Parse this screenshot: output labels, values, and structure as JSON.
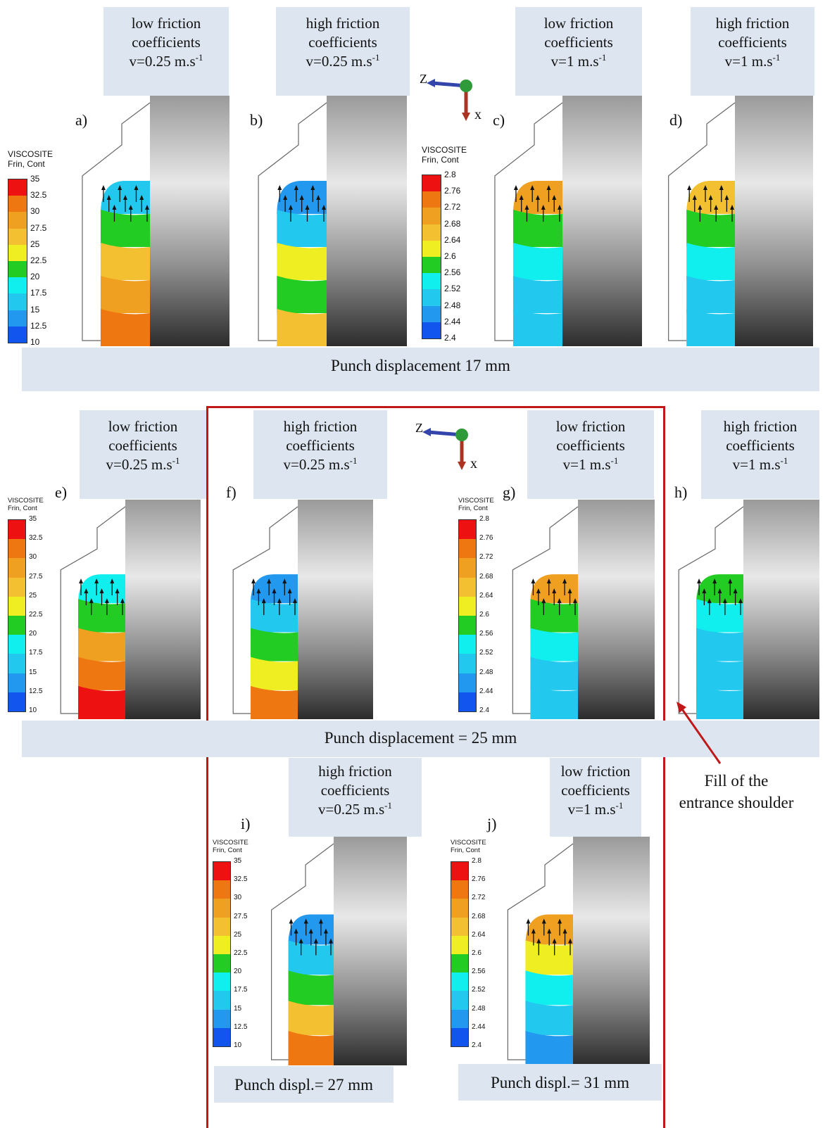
{
  "captions": {
    "a": [
      "low friction",
      "coefficients",
      "v=0.25 m.s",
      "-1"
    ],
    "b": [
      "high friction",
      "coefficients",
      "v=0.25 m.s",
      "-1"
    ],
    "c": [
      "low friction",
      "coefficients",
      "v=1 m.s",
      "-1"
    ],
    "d": [
      "high friction",
      "coefficients",
      "v=1 m.s",
      "-1"
    ],
    "e": [
      "low friction",
      "coefficients",
      "v=0.25 m.s",
      "-1"
    ],
    "f": [
      "high friction",
      "coefficients",
      "v=0.25 m.s",
      "-1"
    ],
    "g": [
      "low friction",
      "coefficients",
      "v=1 m.s",
      "-1"
    ],
    "h": [
      "high friction",
      "coefficients",
      "v=1 m.s",
      "-1"
    ],
    "i": [
      "high friction",
      "coefficients",
      "v=0.25 m.s",
      "-1"
    ],
    "j": [
      "low friction",
      "coefficients",
      "v=1 m.s",
      "-1"
    ]
  },
  "panel_labels": {
    "a": "a)",
    "b": "b)",
    "c": "c)",
    "d": "d)",
    "e": "e)",
    "f": "f)",
    "g": "g)",
    "h": "h)",
    "i": "i)",
    "j": "j)"
  },
  "bands": {
    "row1": "Punch displacement 17 mm",
    "row2": "Punch displacement = 25 mm",
    "row3_left": "Punch displ.= 27 mm",
    "row3_right": "Punch displ.= 31 mm"
  },
  "axis": {
    "z": "Z",
    "x": "x"
  },
  "legend_title": [
    "VISCOSITE",
    "Frin, Cont"
  ],
  "legend_a": [
    "35",
    "32.5",
    "30",
    "27.5",
    "25",
    "22.5",
    "20",
    "17.5",
    "15",
    "12.5",
    "10"
  ],
  "legend_b": [
    "2.8",
    "2.76",
    "2.72",
    "2.68",
    "2.64",
    "2.6",
    "2.56",
    "2.52",
    "2.48",
    "2.44",
    "2.4"
  ],
  "legend_colors": [
    "#ee1111",
    "#ee7711",
    "#f0a020",
    "#f2c030",
    "#eeee22",
    "#22cc22",
    "#11eeee",
    "#22c8ee",
    "#2299ee",
    "#1155ee",
    "#1111ee"
  ],
  "annotation": [
    "Fill of the",
    "entrance shoulder"
  ],
  "colors": {
    "accent_red": "#c01818",
    "band_bg": "#dde6f0"
  }
}
